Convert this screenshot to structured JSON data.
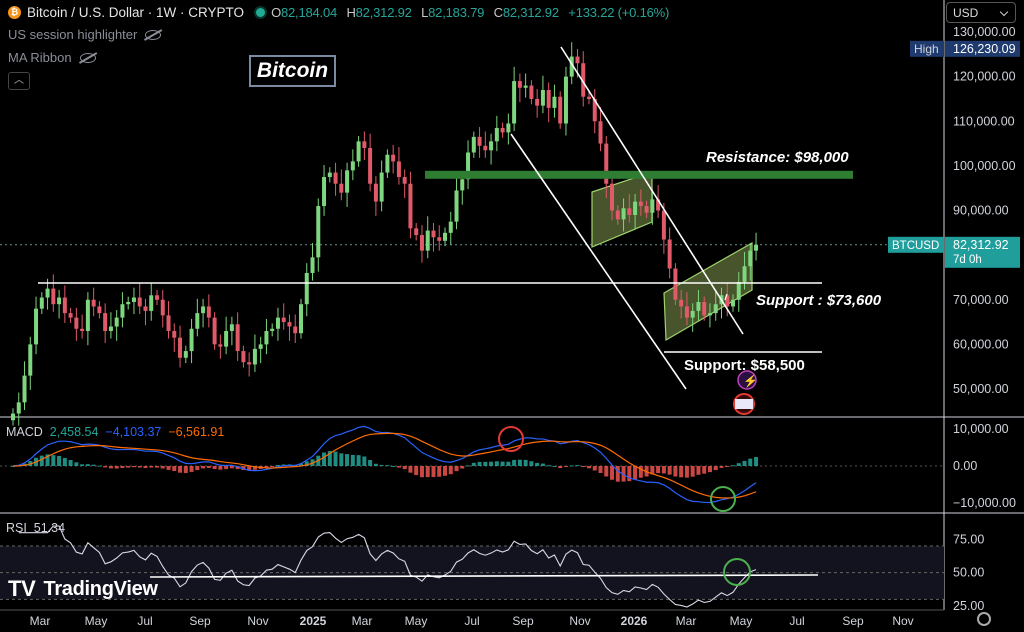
{
  "header": {
    "symbol_title": "Bitcoin / U.S. Dollar · 1W · CRYPTO",
    "coin_glyph": "₿",
    "ohlc": [
      {
        "key": "O",
        "value": "82,184.04"
      },
      {
        "key": "H",
        "value": "82,312.92"
      },
      {
        "key": "L",
        "value": "82,183.79"
      },
      {
        "key": "C",
        "value": "82,312.92"
      }
    ],
    "change": "+133.22 (+0.16%)"
  },
  "indicators": {
    "session": "US session highlighter",
    "ribbon": "MA Ribbon",
    "collapse_icon": "chevron-up-icon"
  },
  "title_box": "Bitcoin",
  "currency_select": "USD",
  "price_axis": {
    "ticks": [
      "130,000.00",
      "120,000.00",
      "110,000.00",
      "100,000.00",
      "90,000.00",
      "70,000.00",
      "60,000.00",
      "50,000.00"
    ],
    "high_label": "High",
    "high_value": "126,230.09",
    "current_symbol": "BTCUSD",
    "current_value": "82,312.92",
    "countdown": "7d 0h"
  },
  "annotations": {
    "resistance": "Resistance: $98,000",
    "support1": "Support : $73,600",
    "support2": "Support: $58,500"
  },
  "macd": {
    "label": "MACD",
    "v1": "2,458.54",
    "v2": "−4,103.37",
    "v3": "−6,561.91",
    "ticks": [
      "10,000.00",
      "0.00",
      "−10,000.00"
    ]
  },
  "rsi": {
    "label": "RSI",
    "value": "51.34",
    "ticks": [
      "75.00",
      "50.00",
      "25.00"
    ]
  },
  "time_axis": [
    "Mar",
    "May",
    "Jul",
    "Sep",
    "Nov",
    "2025",
    "Mar",
    "May",
    "Jul",
    "Sep",
    "Nov",
    "2026",
    "Mar",
    "May",
    "Jul",
    "Sep",
    "Nov"
  ],
  "brand": "TradingView",
  "colors": {
    "up": "#26a69a",
    "down": "#ef5350",
    "candle_up": "#7ed67e",
    "candle_down": "#e05a6a",
    "resistance": "#2e7d32",
    "channel_fill": "#b5d36b",
    "macd_line": "#2962ff",
    "signal_line": "#ff6d00",
    "hist_pos": "#26a69a",
    "hist_neg": "#ef5350",
    "circle_red": "#e53935",
    "circle_green": "#4caf50",
    "usd_bg": "#1e3a6e",
    "btc_label_bg": "#1f9e9b"
  },
  "chart_data": {
    "type": "candlestick",
    "timeframe": "1W",
    "y_range": [
      45000,
      132000
    ],
    "x_range": [
      "2024-03",
      "2026-11"
    ],
    "closes": [
      [
        0,
        44500
      ],
      [
        1,
        47000
      ],
      [
        2,
        53000
      ],
      [
        3,
        60000
      ],
      [
        4,
        68000
      ],
      [
        5,
        70500
      ],
      [
        6,
        72500
      ],
      [
        7,
        69000
      ],
      [
        8,
        70500
      ],
      [
        9,
        67000
      ],
      [
        10,
        66000
      ],
      [
        11,
        63500
      ],
      [
        12,
        63000
      ],
      [
        13,
        70000
      ],
      [
        14,
        68500
      ],
      [
        15,
        67000
      ],
      [
        16,
        63000
      ],
      [
        17,
        64000
      ],
      [
        18,
        66000
      ],
      [
        19,
        69000
      ],
      [
        20,
        69500
      ],
      [
        21,
        70500
      ],
      [
        22,
        68500
      ],
      [
        23,
        67500
      ],
      [
        24,
        71000
      ],
      [
        25,
        70000
      ],
      [
        26,
        66500
      ],
      [
        27,
        63000
      ],
      [
        28,
        61500
      ],
      [
        29,
        57000
      ],
      [
        30,
        58500
      ],
      [
        31,
        63500
      ],
      [
        32,
        67000
      ],
      [
        33,
        68500
      ],
      [
        34,
        66000
      ],
      [
        35,
        60000
      ],
      [
        36,
        59500
      ],
      [
        37,
        63000
      ],
      [
        38,
        64500
      ],
      [
        39,
        58500
      ],
      [
        40,
        56000
      ],
      [
        41,
        55500
      ],
      [
        42,
        59000
      ],
      [
        43,
        60000
      ],
      [
        44,
        63000
      ],
      [
        45,
        63500
      ],
      [
        46,
        66000
      ],
      [
        47,
        65000
      ],
      [
        48,
        64000
      ],
      [
        49,
        62500
      ],
      [
        50,
        69000
      ],
      [
        51,
        76000
      ],
      [
        52,
        79500
      ],
      [
        53,
        91000
      ],
      [
        54,
        97500
      ],
      [
        55,
        98500
      ],
      [
        56,
        96000
      ],
      [
        57,
        94000
      ],
      [
        58,
        99000
      ],
      [
        59,
        101000
      ],
      [
        60,
        105500
      ],
      [
        61,
        104000
      ],
      [
        62,
        96000
      ],
      [
        63,
        92000
      ],
      [
        64,
        98500
      ],
      [
        65,
        102500
      ],
      [
        66,
        101000
      ],
      [
        67,
        97500
      ],
      [
        68,
        96000
      ],
      [
        69,
        86000
      ],
      [
        70,
        84500
      ],
      [
        71,
        81000
      ],
      [
        72,
        85500
      ],
      [
        73,
        84000
      ],
      [
        74,
        83200
      ],
      [
        75,
        85000
      ],
      [
        76,
        87500
      ],
      [
        77,
        94500
      ],
      [
        78,
        97000
      ],
      [
        79,
        103000
      ],
      [
        80,
        106500
      ],
      [
        81,
        104500
      ],
      [
        82,
        103500
      ],
      [
        83,
        105500
      ],
      [
        84,
        108500
      ],
      [
        85,
        107500
      ],
      [
        86,
        109500
      ],
      [
        87,
        119000
      ],
      [
        88,
        117500
      ],
      [
        89,
        118000
      ],
      [
        90,
        115000
      ],
      [
        91,
        113500
      ],
      [
        92,
        117000
      ],
      [
        93,
        113000
      ],
      [
        94,
        115500
      ],
      [
        95,
        109500
      ],
      [
        96,
        120000
      ],
      [
        97,
        124500
      ],
      [
        98,
        123000
      ],
      [
        99,
        115500
      ],
      [
        100,
        115000
      ],
      [
        101,
        110000
      ],
      [
        102,
        105000
      ],
      [
        103,
        96000
      ],
      [
        104,
        90000
      ],
      [
        105,
        88000
      ],
      [
        106,
        90500
      ],
      [
        107,
        89000
      ],
      [
        108,
        92000
      ],
      [
        109,
        91000
      ],
      [
        110,
        89500
      ],
      [
        111,
        92500
      ],
      [
        112,
        90000
      ],
      [
        113,
        83500
      ],
      [
        114,
        77000
      ],
      [
        115,
        70000
      ],
      [
        116,
        68500
      ],
      [
        117,
        66000
      ],
      [
        118,
        67500
      ],
      [
        119,
        69500
      ],
      [
        120,
        66500
      ],
      [
        121,
        67000
      ],
      [
        122,
        69000
      ],
      [
        123,
        71000
      ],
      [
        124,
        68500
      ],
      [
        125,
        70000
      ],
      [
        126,
        74000
      ],
      [
        127,
        77500
      ],
      [
        128,
        81000
      ],
      [
        129,
        82313
      ]
    ],
    "levels": {
      "resistance": 98000,
      "support_1": 73600,
      "support_2": 58500
    },
    "high": 126230.09,
    "last": 82312.92,
    "macd": {
      "macd": 2458.54,
      "signal": -4103.37,
      "histogram": -6561.91,
      "y_range": [
        -13000,
        13000
      ]
    },
    "rsi": {
      "value": 51.34,
      "y_range": [
        20,
        85
      ],
      "levels": [
        30,
        50,
        70
      ]
    }
  }
}
